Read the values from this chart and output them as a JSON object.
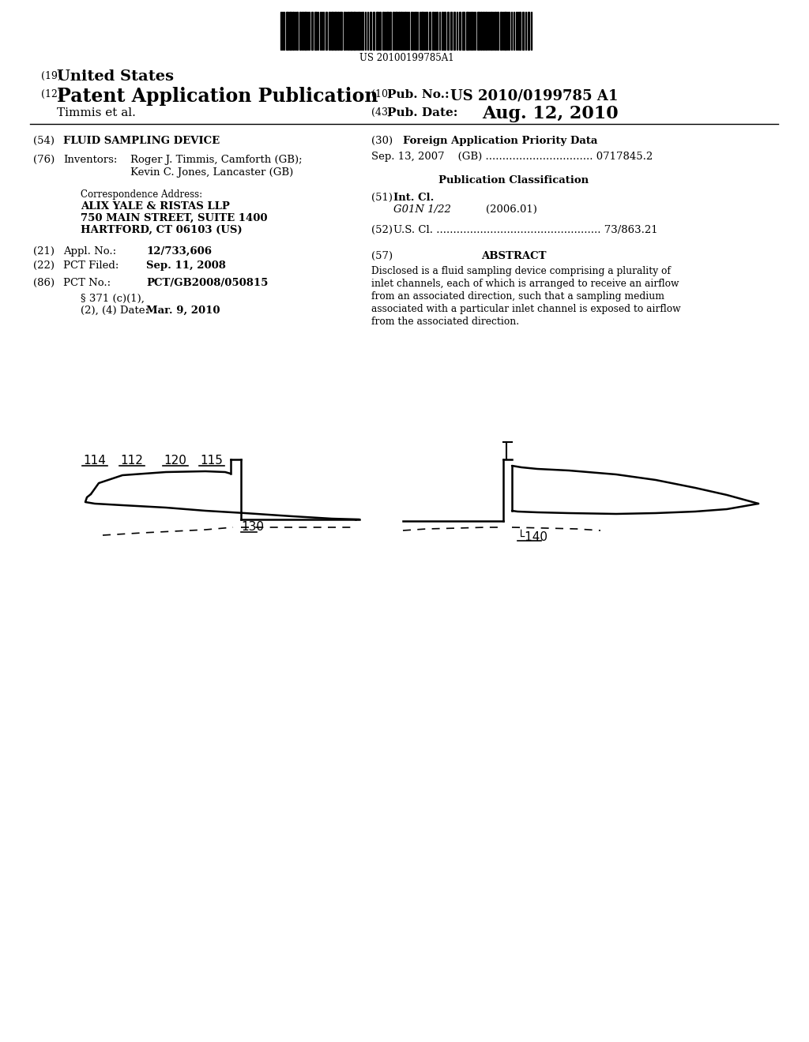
{
  "barcode_text": "US 20100199785A1",
  "title_19_prefix": "(19)",
  "title_19_main": "United States",
  "title_12_prefix": "(12)",
  "title_12_main": "Patent Application Publication",
  "pub_no_prefix": "(10)",
  "pub_no_label": "Pub. No.:",
  "pub_no": "US 2010/0199785 A1",
  "applicant": "Timmis et al.",
  "pub_date_prefix": "(43)",
  "pub_date_label": "Pub. Date:",
  "pub_date": "Aug. 12, 2010",
  "field_54_label": "(54)",
  "field_54": "FLUID SAMPLING DEVICE",
  "field_76_label": "(76)",
  "field_76_title": "Inventors:",
  "field_76_line1": "Roger J. Timmis, Camforth (GB);",
  "field_76_line2": "Kevin C. Jones, Lancaster (GB)",
  "corr_label": "Correspondence Address:",
  "corr_line1": "ALIX YALE & RISTAS LLP",
  "corr_line2": "750 MAIN STREET, SUITE 1400",
  "corr_line3": "HARTFORD, CT 06103 (US)",
  "field_21_label": "(21)",
  "field_21_title": "Appl. No.:",
  "field_21_val": "12/733,606",
  "field_22_label": "(22)",
  "field_22_title": "PCT Filed:",
  "field_22_val": "Sep. 11, 2008",
  "field_86_label": "(86)",
  "field_86_title": "PCT No.:",
  "field_86_val": "PCT/GB2008/050815",
  "field_371a": "§ 371 (c)(1),",
  "field_371b": "(2), (4) Date:",
  "field_371_val": "Mar. 9, 2010",
  "field_30_label": "(30)",
  "field_30_title": "Foreign Application Priority Data",
  "field_30_entry": "Sep. 13, 2007    (GB) ................................ 0717845.2",
  "pub_class_title": "Publication Classification",
  "field_51_label": "(51)",
  "field_51_title": "Int. Cl.",
  "field_51_sub": "G01N 1/22",
  "field_51_year": "(2006.01)",
  "field_52_label": "(52)",
  "field_52_title": "U.S. Cl. ................................................. 73/863.21",
  "field_57_label": "(57)",
  "field_57_title": "ABSTRACT",
  "abstract_lines": [
    "Disclosed is a fluid sampling device comprising a plurality of",
    "inlet channels, each of which is arranged to receive an airflow",
    "from an associated direction, such that a sampling medium",
    "associated with a particular inlet channel is exposed to airflow",
    "from the associated direction."
  ],
  "bg_color": "#ffffff"
}
